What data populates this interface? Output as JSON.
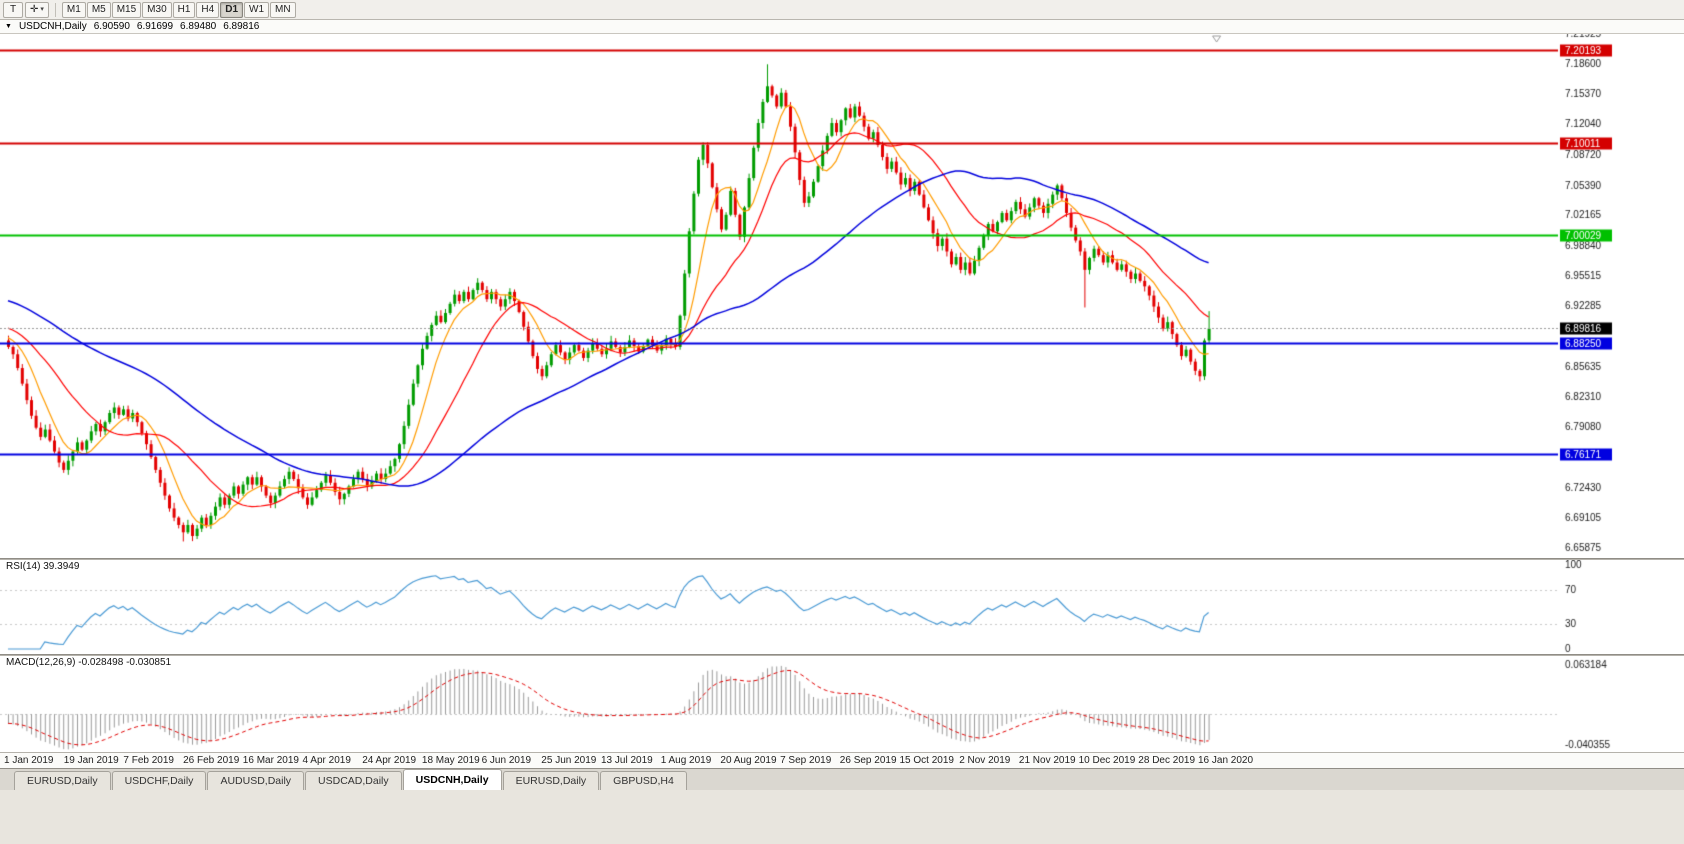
{
  "toolbar": {
    "tool1": "T",
    "tool2": "✛",
    "caret": "▾",
    "timeframes": [
      "M1",
      "M5",
      "M15",
      "M30",
      "H1",
      "H4",
      "D1",
      "W1",
      "MN"
    ],
    "active_timeframe": "D1"
  },
  "header": {
    "collapse": "▼",
    "symbol": "USDCNH,Daily",
    "open": "6.90590",
    "high": "6.91699",
    "low": "6.89480",
    "close": "6.89816"
  },
  "price_axis": {
    "labels": [
      "7.21925",
      "7.18600",
      "7.15370",
      "7.12040",
      "7.08720",
      "7.05390",
      "7.02165",
      "6.98840",
      "6.95515",
      "6.92285",
      "6.85635",
      "6.82310",
      "6.79080",
      "6.72430",
      "6.69105",
      "6.65875"
    ]
  },
  "hlines": [
    {
      "price": 7.20193,
      "color": "#d40000",
      "label": "7.20193"
    },
    {
      "price": 7.10011,
      "color": "#d40000",
      "label": "7.10011"
    },
    {
      "price": 7.00029,
      "color": "#00c000",
      "label": "7.00029"
    },
    {
      "price": 6.8825,
      "color": "#0000e0",
      "label": "6.88250"
    },
    {
      "price": 6.76171,
      "color": "#0000e0",
      "label": "6.76171"
    }
  ],
  "current_price": {
    "value": 6.89816,
    "label": "6.89816"
  },
  "rsi": {
    "name": "RSI(14)",
    "value": "39.3949",
    "period": 14,
    "levels": [
      "100",
      "70",
      "30",
      "0"
    ]
  },
  "macd": {
    "name": "MACD(12,26,9)",
    "values": "-0.028498 -0.030851",
    "axis_top": "0.063184",
    "axis_bottom": "-0.040355",
    "fast": 12,
    "slow": 26,
    "signal": 9
  },
  "time_axis": {
    "labels": [
      "1 Jan 2019",
      "19 Jan 2019",
      "7 Feb 2019",
      "26 Feb 2019",
      "16 Mar 2019",
      "4 Apr 2019",
      "24 Apr 2019",
      "18 May 2019",
      "6 Jun 2019",
      "25 Jun 2019",
      "13 Jul 2019",
      "1 Aug 2019",
      "20 Aug 2019",
      "7 Sep 2019",
      "26 Sep 2019",
      "15 Oct 2019",
      "2 Nov 2019",
      "21 Nov 2019",
      "10 Dec 2019",
      "28 Dec 2019",
      "16 Jan 2020"
    ]
  },
  "tabs": {
    "items": [
      "EURUSD,Daily",
      "USDCHF,Daily",
      "AUDUSD,Daily",
      "USDCAD,Daily",
      "USDCNH,Daily",
      "EURUSD,Daily",
      "GBPUSD,H4"
    ],
    "active_index": 4
  },
  "chart_data": {
    "type": "candlestick",
    "symbol": "USDCNH",
    "timeframe": "Daily",
    "last_ohlc": {
      "open": 6.9059,
      "high": 6.91699,
      "low": 6.8948,
      "close": 6.89816
    },
    "open_first": 6.885,
    "closes": [
      6.878,
      6.87,
      6.855,
      6.838,
      6.82,
      6.803,
      6.79,
      6.78,
      6.788,
      6.776,
      6.764,
      6.752,
      6.744,
      6.754,
      6.764,
      6.774,
      6.766,
      6.776,
      6.786,
      6.794,
      6.786,
      6.796,
      6.806,
      6.812,
      6.804,
      6.81,
      6.8,
      6.806,
      6.796,
      6.784,
      6.772,
      6.758,
      6.744,
      6.73,
      6.716,
      6.702,
      6.692,
      6.684,
      6.676,
      6.684,
      6.672,
      6.68,
      6.692,
      6.684,
      6.694,
      6.704,
      6.714,
      6.706,
      6.716,
      6.726,
      6.718,
      6.728,
      6.736,
      6.728,
      6.736,
      6.726,
      6.716,
      6.708,
      6.716,
      6.726,
      6.734,
      6.742,
      6.734,
      6.724,
      6.714,
      6.706,
      6.714,
      6.722,
      6.73,
      6.738,
      6.73,
      6.72,
      6.712,
      6.718,
      6.726,
      6.734,
      6.742,
      6.734,
      6.726,
      6.732,
      6.74,
      6.734,
      6.74,
      6.748,
      6.756,
      6.772,
      6.792,
      6.815,
      6.838,
      6.858,
      6.876,
      6.89,
      6.902,
      6.912,
      6.905,
      6.915,
      6.925,
      6.935,
      6.928,
      6.938,
      6.93,
      6.94,
      6.948,
      6.94,
      6.93,
      6.938,
      6.93,
      6.922,
      6.93,
      6.938,
      6.928,
      6.916,
      6.9,
      6.884,
      6.868,
      6.854,
      6.846,
      6.858,
      6.87,
      6.88,
      6.872,
      6.864,
      6.872,
      6.88,
      6.874,
      6.866,
      6.874,
      6.882,
      6.876,
      6.87,
      6.876,
      6.884,
      6.878,
      6.872,
      6.878,
      6.885,
      6.879,
      6.873,
      6.879,
      6.886,
      6.88,
      6.874,
      6.88,
      6.887,
      6.882,
      6.878,
      6.912,
      6.958,
      7.004,
      7.045,
      7.082,
      7.098,
      7.078,
      7.052,
      7.028,
      7.006,
      7.022,
      7.048,
      7.022,
      6.998,
      7.03,
      7.062,
      7.095,
      7.122,
      7.145,
      7.162,
      7.152,
      7.14,
      7.155,
      7.14,
      7.118,
      7.09,
      7.06,
      7.035,
      7.042,
      7.058,
      7.075,
      7.092,
      7.108,
      7.122,
      7.112,
      7.125,
      7.138,
      7.128,
      7.14,
      7.13,
      7.118,
      7.105,
      7.112,
      7.098,
      7.085,
      7.072,
      7.08,
      7.068,
      7.055,
      7.062,
      7.048,
      7.058,
      7.044,
      7.03,
      7.016,
      7.002,
      6.988,
      6.996,
      6.982,
      6.968,
      6.976,
      6.962,
      6.97,
      6.958,
      6.972,
      6.986,
      7.0,
      7.012,
      7.004,
      7.014,
      7.024,
      7.016,
      7.026,
      7.036,
      7.028,
      7.02,
      7.03,
      7.04,
      7.032,
      7.024,
      7.034,
      7.044,
      7.054,
      7.04,
      7.024,
      7.008,
      6.994,
      6.982,
      6.962,
      6.975,
      6.985,
      6.978,
      6.97,
      6.978,
      6.97,
      6.962,
      6.968,
      6.96,
      6.952,
      6.958,
      6.95,
      6.944,
      6.934,
      6.922,
      6.91,
      6.898,
      6.905,
      6.892,
      6.88,
      6.868,
      6.875,
      6.862,
      6.852,
      6.846,
      6.885,
      6.898
    ],
    "wick_overrides": {
      "38": {
        "low": 6.666
      },
      "165": {
        "high": 7.186
      },
      "234": {
        "low": 6.921
      },
      "260": {
        "low": 6.842
      },
      "261": {
        "high": 6.917
      }
    },
    "ma_seed": {
      "start": 6.975,
      "end": 6.885,
      "count": 60
    },
    "ma_periods": {
      "fast": 8,
      "mid": 21,
      "slow": 60
    },
    "scale": {
      "top": 7.219,
      "bottom": 6.648
    },
    "macd_scale": {
      "top": 0.066,
      "bottom": -0.043
    }
  }
}
